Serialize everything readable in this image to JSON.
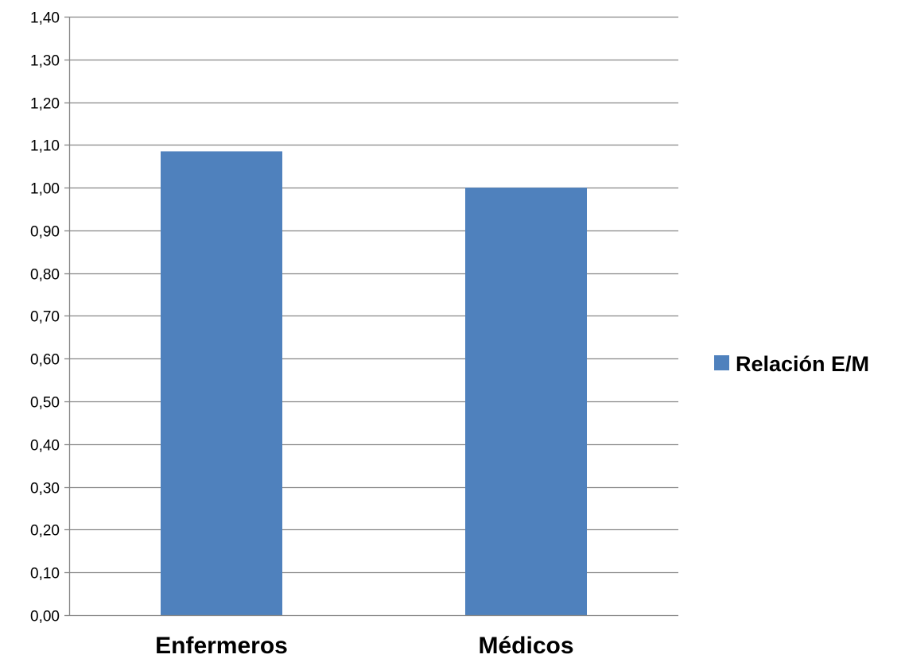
{
  "chart_data": {
    "type": "bar",
    "title": "",
    "xlabel": "",
    "ylabel": "",
    "categories": [
      "Enfermeros",
      "Médicos"
    ],
    "series": [
      {
        "name": "Relación E/M",
        "values": [
          1.085,
          1.0
        ],
        "color": "#4f81bd"
      }
    ],
    "ylim": [
      0,
      1.4
    ],
    "ytick_step": 0.1,
    "yticks": [
      "0,00",
      "0,10",
      "0,20",
      "0,30",
      "0,40",
      "0,50",
      "0,60",
      "0,70",
      "0,80",
      "0,90",
      "1,00",
      "1,10",
      "1,20",
      "1,30",
      "1,40"
    ],
    "grid": true,
    "gridline_color": "#868686",
    "legend_position": "right"
  }
}
